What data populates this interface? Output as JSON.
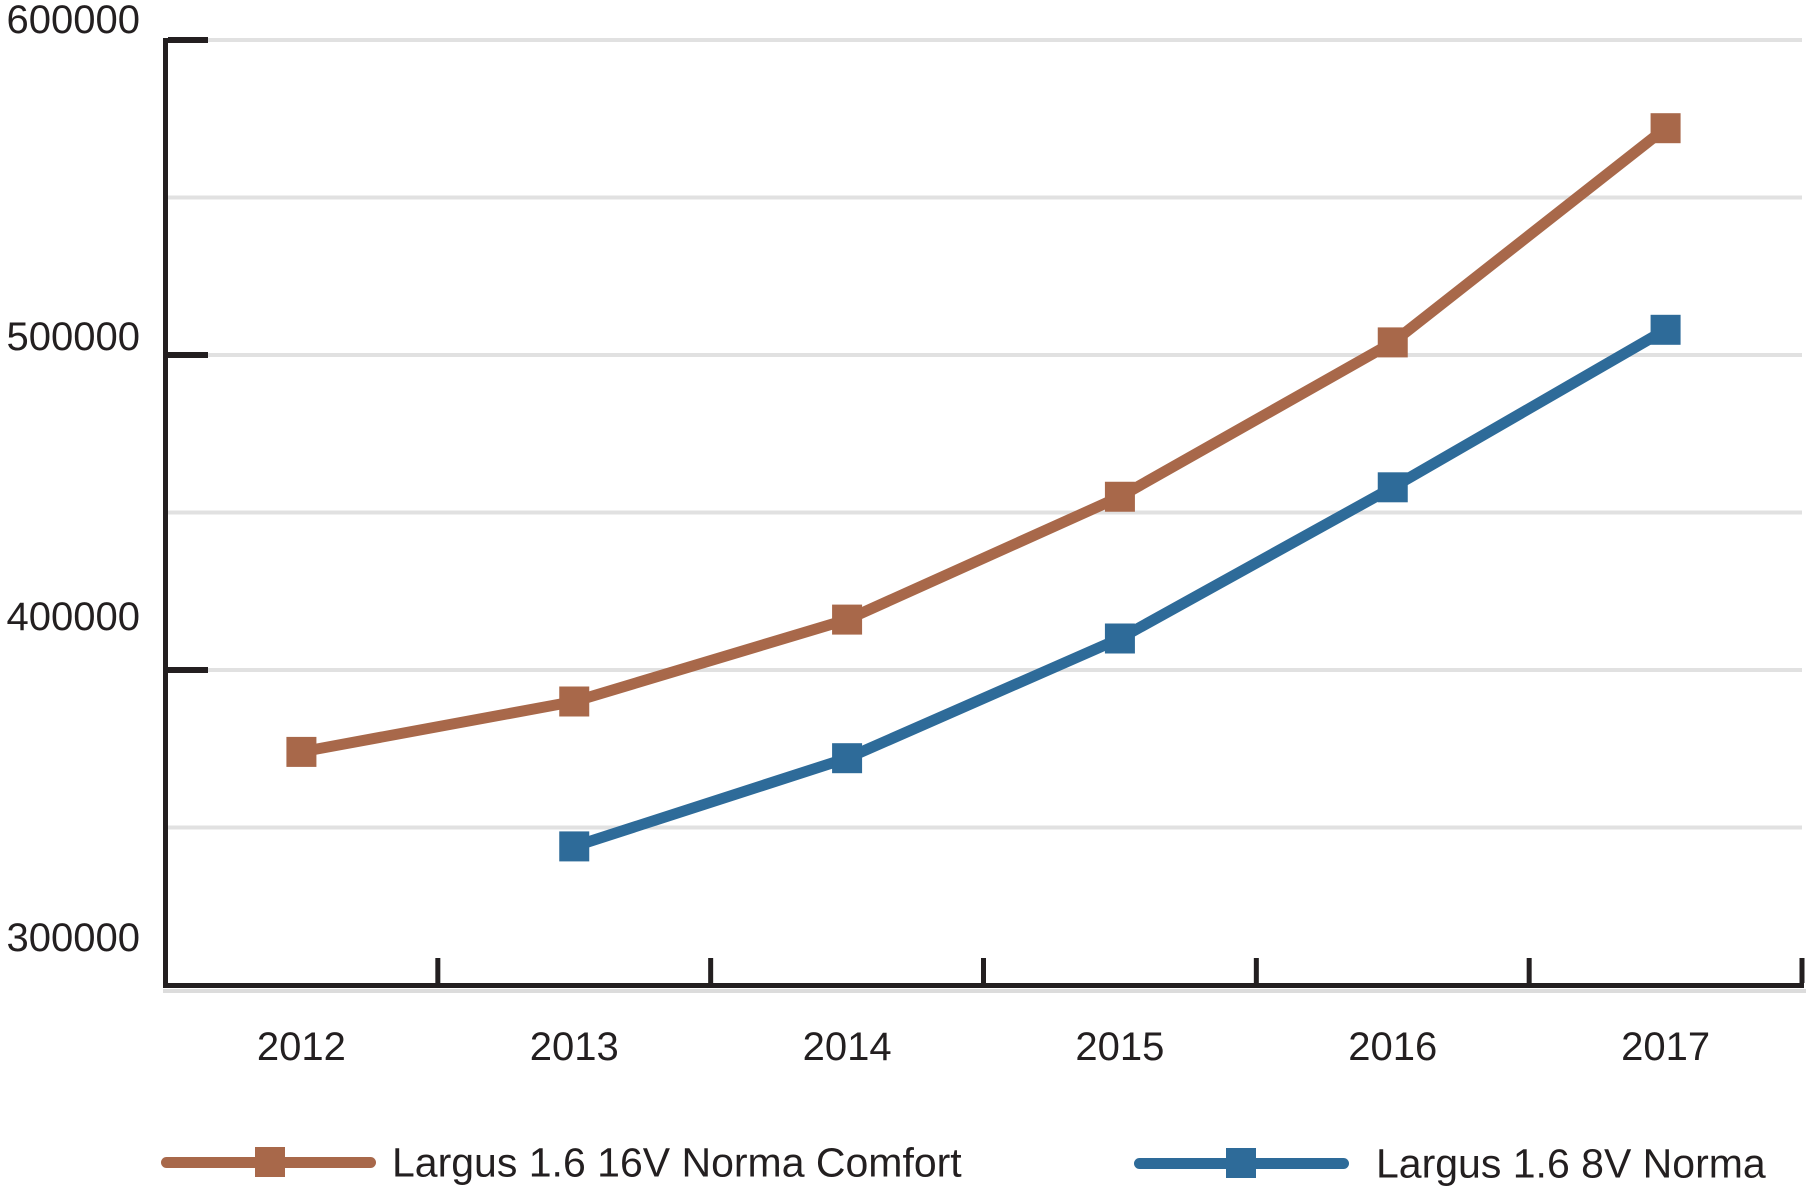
{
  "chart_data": {
    "type": "line",
    "title": "",
    "categories": [
      "2012",
      "2013",
      "2014",
      "2015",
      "2016",
      "2017"
    ],
    "series": [
      {
        "name": "Largus 1.6 16V Norma Comfort",
        "color": "#A8684A",
        "values": [
          374000,
          390000,
          416000,
          455000,
          504000,
          572000
        ]
      },
      {
        "name": "Largus 1.6 8V Norma",
        "color": "#2E6B99",
        "values": [
          null,
          344000,
          372000,
          410000,
          458000,
          508000
        ]
      }
    ],
    "y_axis": {
      "min": 300000,
      "max": 600000,
      "tick_labels": [
        {
          "value": 600000,
          "label": "600000"
        },
        {
          "value": 500000,
          "label": "500000"
        },
        {
          "value": 400000,
          "label": "400000"
        },
        {
          "value": 300000,
          "label": "300000"
        }
      ],
      "gridline_values": [
        600000,
        550000,
        500000,
        450000,
        400000,
        350000
      ]
    },
    "x_axis": {
      "boundary_ticks": 6
    },
    "marker": "square",
    "grid": "horizontal",
    "legend_position": "bottom"
  },
  "colors": {
    "axis": "#231F20",
    "text": "#231F20",
    "gridline": "#E1E1E1",
    "axis_shadow": "#DCDCDC",
    "background": "#FFFFFF"
  }
}
